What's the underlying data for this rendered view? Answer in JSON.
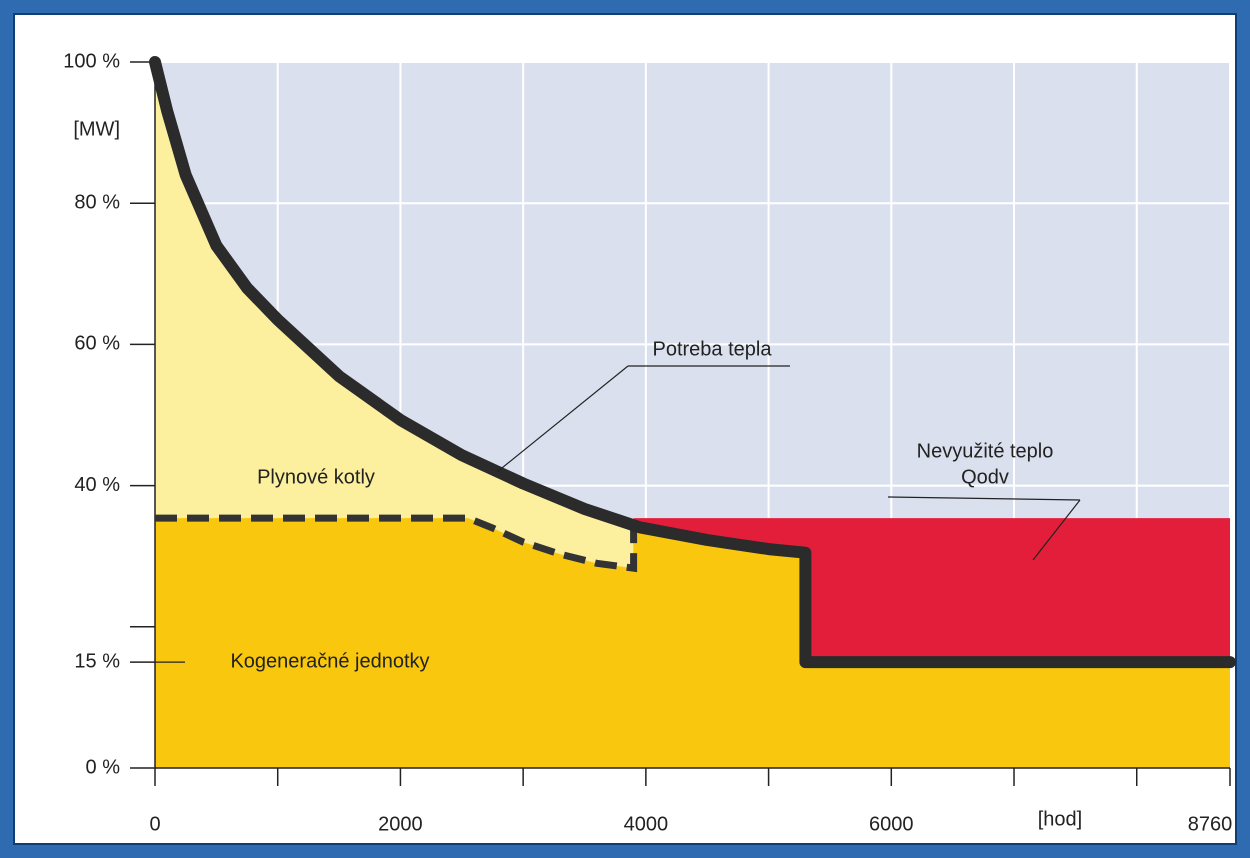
{
  "chart_data": {
    "type": "area",
    "ylabel": "[MW]",
    "xlabel": "[hod]",
    "xlim": [
      0,
      8760
    ],
    "ylim": [
      0,
      100
    ],
    "xticks": [
      0,
      2000,
      4000,
      6000,
      8760
    ],
    "xminor_ticks": [
      1000,
      3000,
      5000,
      7000,
      8000
    ],
    "yticks": [
      {
        "value": 0,
        "label": "0 %"
      },
      {
        "value": 15,
        "label": "15 %"
      },
      {
        "value": 40,
        "label": "40 %"
      },
      {
        "value": 60,
        "label": "60 %"
      },
      {
        "value": 80,
        "label": "80 %"
      },
      {
        "value": 100,
        "label": "100 %"
      }
    ],
    "yminor_ticks": [
      20
    ],
    "grid": true,
    "series": [
      {
        "name": "Potreba tepla",
        "color": "#2b2b2b",
        "fill": "#fcef9e",
        "x": [
          0,
          100,
          250,
          500,
          750,
          1000,
          1500,
          2000,
          2500,
          3000,
          3500,
          3950,
          4500,
          5000,
          5300,
          5300,
          8760
        ],
        "values": [
          100,
          93,
          84,
          74,
          68,
          63.5,
          55.5,
          49.3,
          44.3,
          40.3,
          36.7,
          34.1,
          32.3,
          31,
          30.5,
          15,
          15
        ]
      },
      {
        "name": "Kogeneračné jednotky",
        "color": "#f9c80e",
        "line_color": "#333333",
        "x": [
          0,
          2550,
          2750,
          3000,
          3300,
          3600,
          3900,
          3900
        ],
        "values": [
          35.4,
          35.4,
          34,
          32,
          30.3,
          29,
          28.3,
          34.5
        ]
      },
      {
        "name": "Nevyužité teplo",
        "color": "#e31e3a",
        "x": [
          3900,
          8760
        ],
        "values": [
          35.4,
          35.4
        ]
      }
    ],
    "annotations": [
      "Plynové kotly",
      "Qodv"
    ]
  }
}
